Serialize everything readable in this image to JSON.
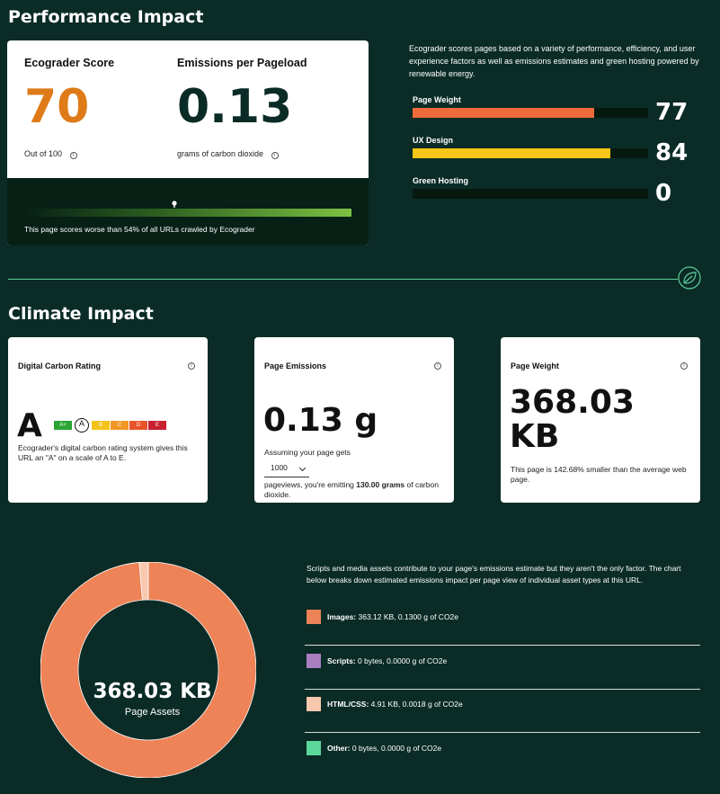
{
  "performance": {
    "title": "Performance Impact",
    "score_label": "Ecograder Score",
    "score_value": "70",
    "score_sub": "Out of 100",
    "emissions_label": "Emissions per Pageload",
    "emissions_value": "0.13",
    "emissions_sub": "grams of carbon dioxide",
    "percentile_text": "This page scores worse than 54% of all URLs crawled by Ecograder",
    "percentile": 0.46,
    "intro": "Ecograder scores pages based on a variety of performance, efficiency, and user experience factors as well as emissions estimates and green hosting powered by renewable energy.",
    "bars": [
      {
        "label": "Page Weight",
        "value": "77",
        "fraction": 0.77,
        "color": "#ee6b3b"
      },
      {
        "label": "UX Design",
        "value": "84",
        "fraction": 0.84,
        "color": "#f5c518"
      },
      {
        "label": "Green Hosting",
        "value": "0",
        "fraction": 0.0,
        "color": "#7cc242"
      }
    ]
  },
  "climate": {
    "title": "Climate Impact",
    "rating_card": {
      "title": "Digital Carbon Rating",
      "grade": "A",
      "scale": [
        {
          "label": "A+",
          "color": "#2aa532"
        },
        {
          "label": "A",
          "color": "#6cb33f"
        },
        {
          "label": "B",
          "color": "#f4c21a"
        },
        {
          "label": "C",
          "color": "#f29625"
        },
        {
          "label": "D",
          "color": "#e8532a"
        },
        {
          "label": "E",
          "color": "#c8202f"
        }
      ],
      "desc": "Ecograder's digital carbon rating system gives this URL an \"A\" on a scale of A to E."
    },
    "emissions_card": {
      "title": "Page Emissions",
      "value": "0.13 g",
      "assuming": "Assuming your page gets",
      "pageviews": "1000",
      "result_prefix": "pageviews, you're emitting ",
      "result_bold": "130.00 grams",
      "result_suffix": " of carbon dioxide."
    },
    "weight_card": {
      "title": "Page Weight",
      "value_line1": "368.03",
      "value_line2": "KB",
      "desc": "This page is 142.68% smaller than the average web page."
    }
  },
  "assets": {
    "intro": "Scripts and media assets contribute to your page's emissions estimate but they aren't the only factor. The chart below breaks down estimated emissions impact per page view of individual asset types at this URL.",
    "donut_value": "368.03 KB",
    "donut_label": "Page Assets",
    "items": [
      {
        "name": "Images:",
        "detail": " 363.12 KB, 0.1300 g of CO2e",
        "kb": 363.12,
        "color": "#ed8357"
      },
      {
        "name": "Scripts:",
        "detail": " 0 bytes, 0.0000 g of CO2e",
        "kb": 0,
        "color": "#a97fbf"
      },
      {
        "name": "HTML/CSS:",
        "detail": " 4.91 KB, 0.0018 g of CO2e",
        "kb": 4.91,
        "color": "#f8c8ae"
      },
      {
        "name": "Other:",
        "detail": " 0 bytes, 0.0000 g of CO2e",
        "kb": 0,
        "color": "#5bd89a"
      }
    ]
  }
}
